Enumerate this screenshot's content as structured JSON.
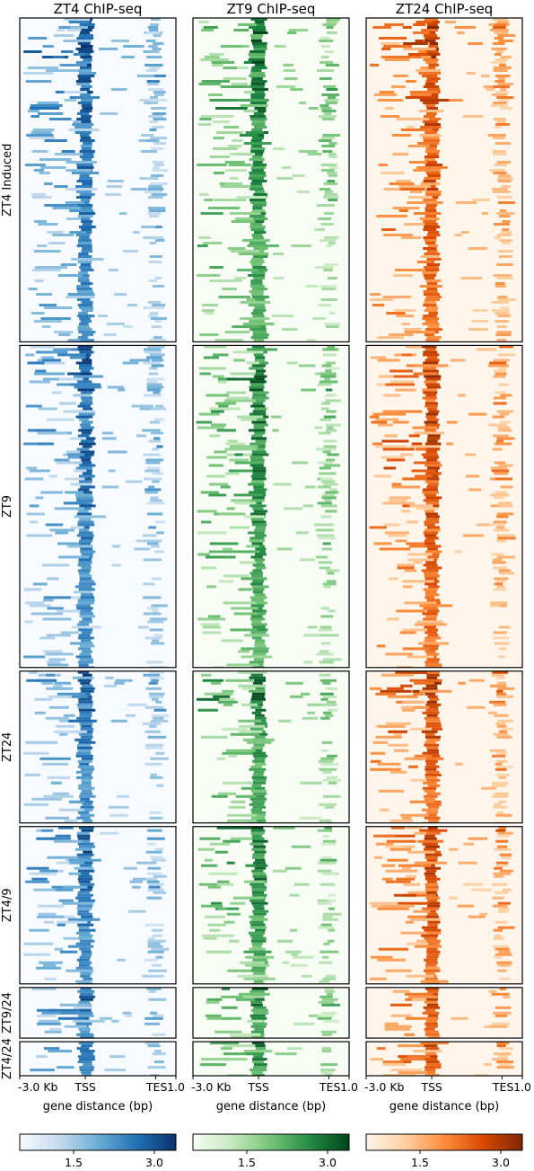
{
  "chart_data": {
    "type": "heatmap",
    "columns": [
      {
        "title": "ZT4 ChIP-seq",
        "colormap": [
          "#f7fbff",
          "#c6dbef",
          "#6baed6",
          "#2171b5",
          "#08306b"
        ]
      },
      {
        "title": "ZT9 ChIP-seq",
        "colormap": [
          "#f7fcf5",
          "#c7e9c0",
          "#74c476",
          "#238b45",
          "#00441b"
        ]
      },
      {
        "title": "ZT24 ChIP-seq",
        "colormap": [
          "#fff5eb",
          "#fdd0a2",
          "#fd8d3c",
          "#d94801",
          "#7f2704"
        ]
      }
    ],
    "groups": [
      {
        "label": "ZT4 Induced",
        "relative_size": 352
      },
      {
        "label": "ZT9",
        "relative_size": 350
      },
      {
        "label": "ZT24",
        "relative_size": 165
      },
      {
        "label": "ZT4/9",
        "relative_size": 171
      },
      {
        "label": "ZT9/24",
        "relative_size": 55
      },
      {
        "label": "ZT4/24",
        "relative_size": 37
      }
    ],
    "x_axis": {
      "ticks": [
        "-3.0 Kb",
        "TSS",
        "TES",
        "1.0"
      ],
      "xlabel": "gene distance (bp)",
      "tss_position": 0.42,
      "tes_position": 0.87
    },
    "colorbar": {
      "ticks": [
        1.5,
        3.0
      ],
      "tick_labels": [
        "1.5",
        "3.0"
      ],
      "range": [
        0.5,
        3.4
      ]
    }
  }
}
